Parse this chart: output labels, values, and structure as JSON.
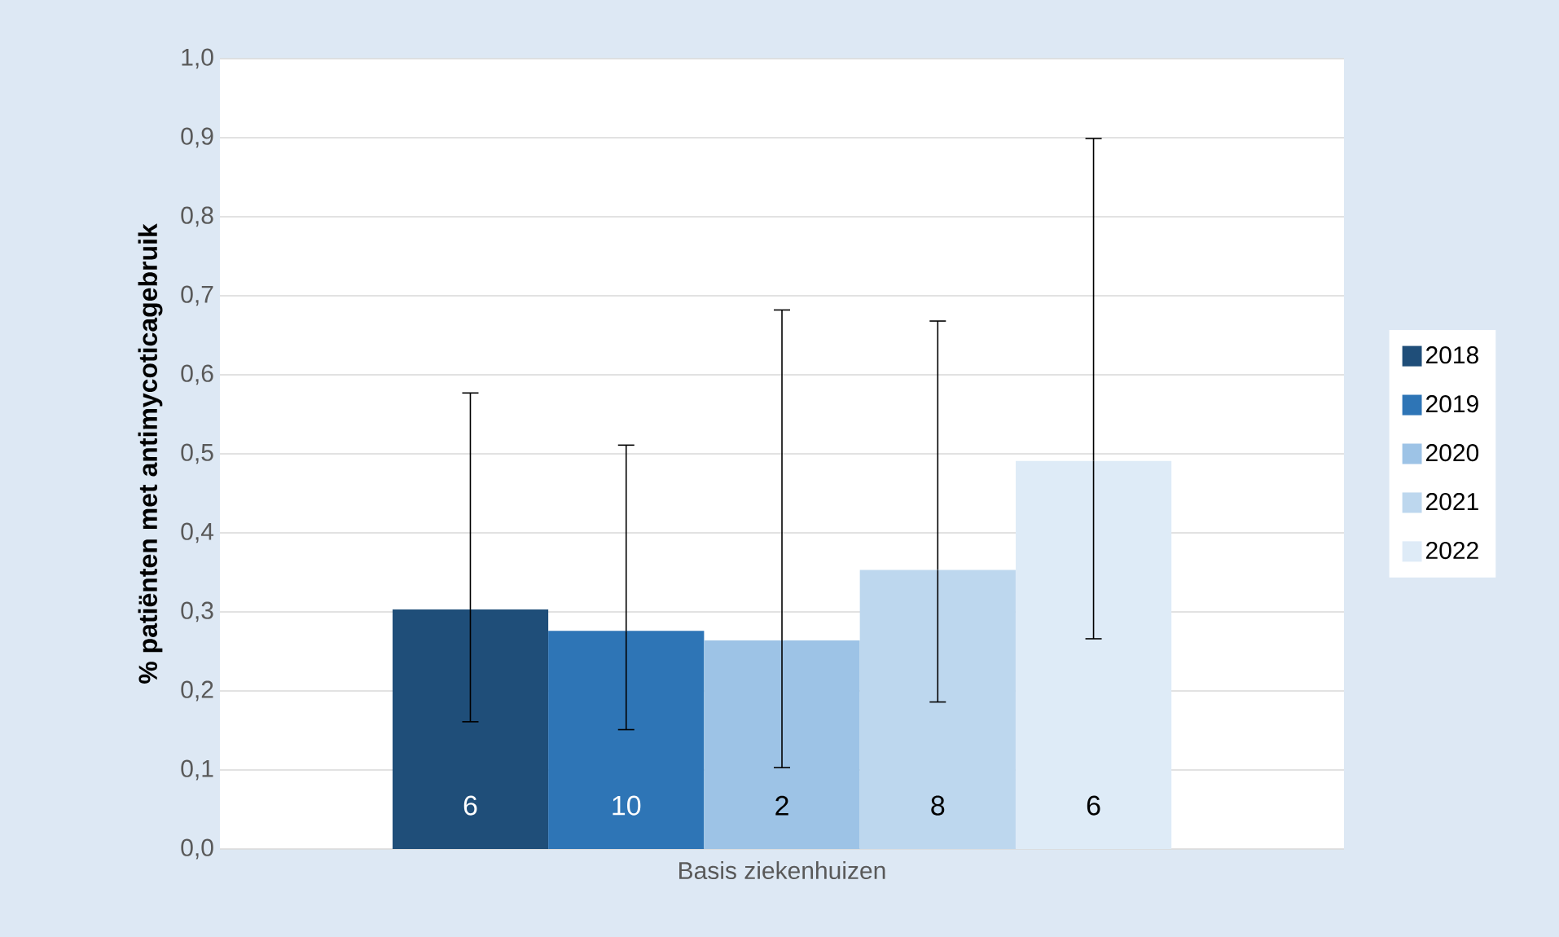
{
  "chart_data": {
    "type": "bar",
    "categories": [
      "Basis ziekenhuizen"
    ],
    "ylabel": "% patiënten met antimycoticagebruik",
    "ylim": [
      0,
      1
    ],
    "yticks": [
      {
        "value": 0,
        "label": "0,0"
      },
      {
        "value": 0.1,
        "label": "0,1"
      },
      {
        "value": 0.2,
        "label": "0,2"
      },
      {
        "value": 0.3,
        "label": "0,3"
      },
      {
        "value": 0.4,
        "label": "0,4"
      },
      {
        "value": 0.5,
        "label": "0,5"
      },
      {
        "value": 0.6,
        "label": "0,6"
      },
      {
        "value": 0.7,
        "label": "0,7"
      },
      {
        "value": 0.8,
        "label": "0,8"
      },
      {
        "value": 0.9,
        "label": "0,9"
      },
      {
        "value": 1.0,
        "label": "1,0"
      }
    ],
    "grid": "y",
    "legend": "right",
    "annotations": [
      "6",
      "10",
      "2",
      "8",
      "6"
    ],
    "series": [
      {
        "name": "2018",
        "color": "#1f4e79",
        "values": [
          0.303
        ],
        "errors": [
          [
            0.161,
            0.577
          ]
        ]
      },
      {
        "name": "2019",
        "color": "#2e75b6",
        "values": [
          0.276
        ],
        "errors": [
          [
            0.151,
            0.511
          ]
        ]
      },
      {
        "name": "2020",
        "color": "#9dc3e6",
        "values": [
          0.264
        ],
        "errors": [
          [
            0.103,
            0.682
          ]
        ]
      },
      {
        "name": "2021",
        "color": "#bdd7ee",
        "values": [
          0.353
        ],
        "errors": [
          [
            0.186,
            0.668
          ]
        ]
      },
      {
        "name": "2022",
        "color": "#deebf7",
        "values": [
          0.491
        ],
        "errors": [
          [
            0.266,
            0.899
          ]
        ]
      }
    ]
  }
}
